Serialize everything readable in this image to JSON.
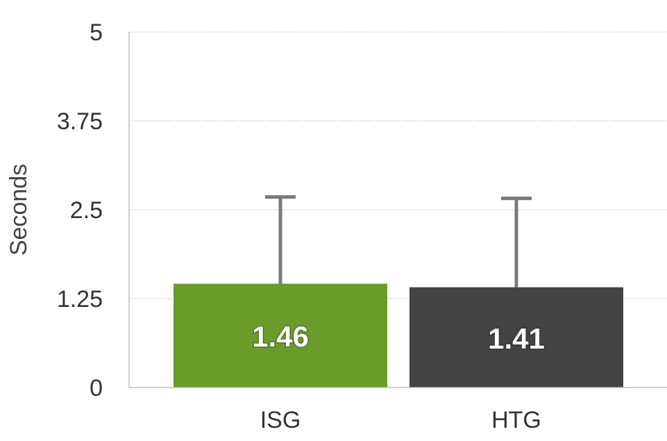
{
  "chart_data": {
    "type": "bar",
    "ylabel": "Seconds",
    "ylim": [
      0,
      5
    ],
    "yticks": [
      "0",
      "1.25",
      "2.5",
      "3.75",
      "5"
    ],
    "yticks_values": [
      0,
      1.25,
      2.5,
      3.75,
      5
    ],
    "categories": [
      "ISG",
      "HTG"
    ],
    "values": [
      1.46,
      1.41
    ],
    "value_labels": [
      "1.46",
      "1.41"
    ],
    "error_upper": [
      2.68,
      2.66
    ],
    "colors": [
      "#6a9c2b",
      "#444444"
    ],
    "error_color": "#7a7a7a",
    "grid": true
  }
}
